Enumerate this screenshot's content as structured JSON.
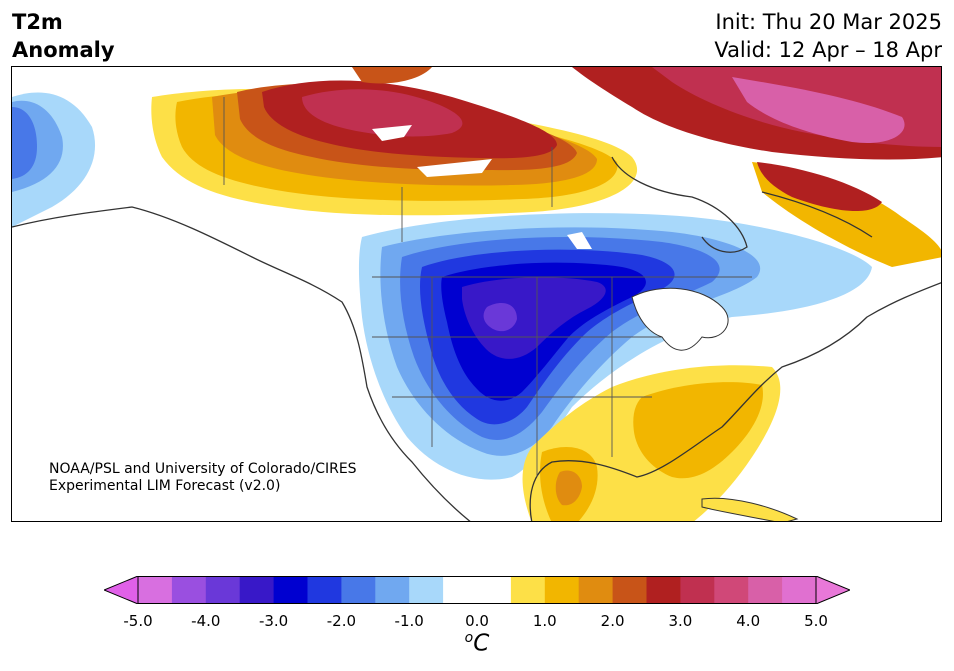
{
  "title": {
    "line1": "T2m",
    "line2": "Anomaly"
  },
  "init": "Init: Thu 20 Mar 2025",
  "valid": "Valid: 12 Apr – 18 Apr",
  "credit": {
    "line1": "NOAA/PSL and University of Colorado/CIRES",
    "line2": "Experimental LIM Forecast (v2.0)"
  },
  "colorbar": {
    "unit_prefix": "o",
    "unit": "C",
    "ticks": [
      "-5.0",
      "-4.0",
      "-3.0",
      "-2.0",
      "-1.0",
      "0.0",
      "1.0",
      "2.0",
      "3.0",
      "4.0",
      "5.0"
    ],
    "colors": [
      "#d86fe0",
      "#9a4fe0",
      "#6a38d8",
      "#3818c8",
      "#0000d0",
      "#2038e0",
      "#4878e8",
      "#70a8f0",
      "#a8d8fa",
      "#ffffff",
      "#ffffff",
      "#fde047",
      "#f2b600",
      "#e08c10",
      "#c85418",
      "#b02020",
      "#c03050",
      "#d04878",
      "#d860a8",
      "#e070d0"
    ],
    "min_color": "#e060e8",
    "max_color": "#e878d8"
  },
  "map_regions": {
    "canada_north_anomaly": "warm",
    "central_us_anomaly": "cold",
    "southeast_us_anomaly": "warm"
  }
}
